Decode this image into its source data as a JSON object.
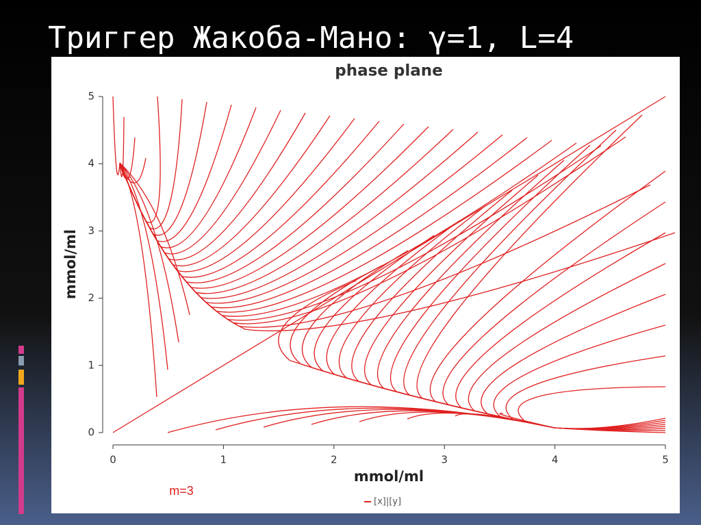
{
  "title": "Триггер Жакоба-Мано: γ=1, L=4",
  "chart_data": {
    "type": "phase",
    "title": "phase plane",
    "x_label": "mmol/ml",
    "y_label": "mmol/ml",
    "xlim": [
      0,
      5
    ],
    "ylim": [
      0,
      5
    ],
    "xticks": [
      0,
      1,
      2,
      3,
      4,
      5
    ],
    "yticks": [
      0,
      1,
      2,
      3,
      4,
      5
    ],
    "series": [
      {
        "name": "[x]|[y]",
        "color": "#e02020"
      }
    ],
    "annotation": "m=3"
  }
}
